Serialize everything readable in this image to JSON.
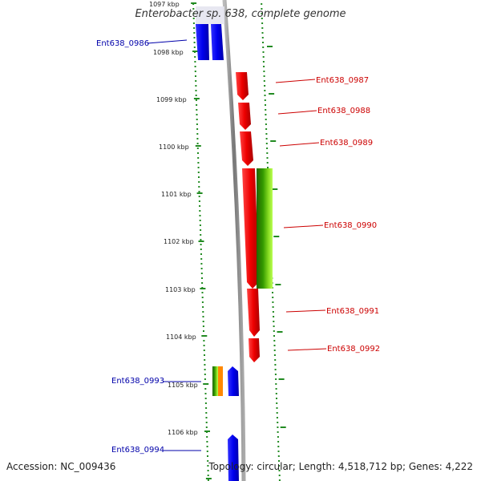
{
  "title": "Enterobacter sp. 638, complete genome",
  "footer": {
    "accession": "Accession: NC_009436",
    "summary": "Topology: circular; Length: 4,518,712 bp; Genes: 4,222"
  },
  "colors": {
    "backbone": "#888888",
    "tick": "#228B22",
    "reverse_gene": "#0000ee",
    "forward_gene": "#ee0000",
    "forward_label": "#cc0000",
    "reverse_label": "#0000aa",
    "feature_green_dark": "#2e8b00",
    "feature_green_light": "#99ee33",
    "feature_orange": "#ff8800"
  },
  "scale_labels": [
    "1097 kbp",
    "1098 kbp",
    "1099 kbp",
    "1100 kbp",
    "1101 kbp",
    "1102 kbp",
    "1103 kbp",
    "1104 kbp",
    "1105 kbp",
    "1106 kbp"
  ],
  "genes": [
    {
      "id": "Ent638_0986",
      "strand": "reverse"
    },
    {
      "id": "Ent638_0987",
      "strand": "forward"
    },
    {
      "id": "Ent638_0988",
      "strand": "forward"
    },
    {
      "id": "Ent638_0989",
      "strand": "forward"
    },
    {
      "id": "Ent638_0990",
      "strand": "forward"
    },
    {
      "id": "Ent638_0991",
      "strand": "forward"
    },
    {
      "id": "Ent638_0992",
      "strand": "forward"
    },
    {
      "id": "Ent638_0993",
      "strand": "reverse"
    },
    {
      "id": "Ent638_0994",
      "strand": "reverse"
    }
  ]
}
